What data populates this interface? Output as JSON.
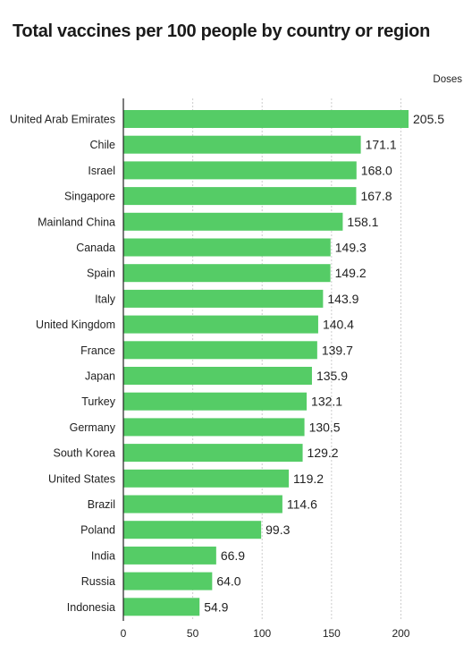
{
  "chart_data": {
    "type": "bar",
    "orientation": "horizontal",
    "title": "Total vaccines per 100 people by country or region",
    "unit_label": "Doses",
    "categories": [
      "United Arab Emirates",
      "Chile",
      "Israel",
      "Singapore",
      "Mainland China",
      "Canada",
      "Spain",
      "Italy",
      "United Kingdom",
      "France",
      "Japan",
      "Turkey",
      "Germany",
      "South Korea",
      "United States",
      "Brazil",
      "Poland",
      "India",
      "Russia",
      "Indonesia"
    ],
    "value_labels": [
      "205.5",
      "171.1",
      "168.0",
      "167.8",
      "158.1",
      "149.3",
      "149.2",
      "143.9",
      "140.4",
      "139.7",
      "135.9",
      "132.1",
      "130.5",
      "129.2",
      "119.2",
      "114.6",
      "99.3",
      "66.9",
      "64.0",
      "54.9"
    ],
    "values": [
      205.5,
      171.1,
      168.0,
      167.8,
      158.1,
      149.3,
      149.2,
      143.9,
      140.4,
      139.7,
      135.9,
      132.1,
      130.5,
      129.2,
      119.2,
      114.6,
      99.3,
      66.9,
      64.0,
      54.9
    ],
    "xticks": [
      0,
      50,
      100,
      150,
      200
    ],
    "xtick_labels": [
      "0",
      "50",
      "100",
      "150",
      "200"
    ],
    "xlim": [
      0,
      205.5
    ],
    "grid": true,
    "bar_color": "#55cc66",
    "grid_color": "#cccccc"
  }
}
